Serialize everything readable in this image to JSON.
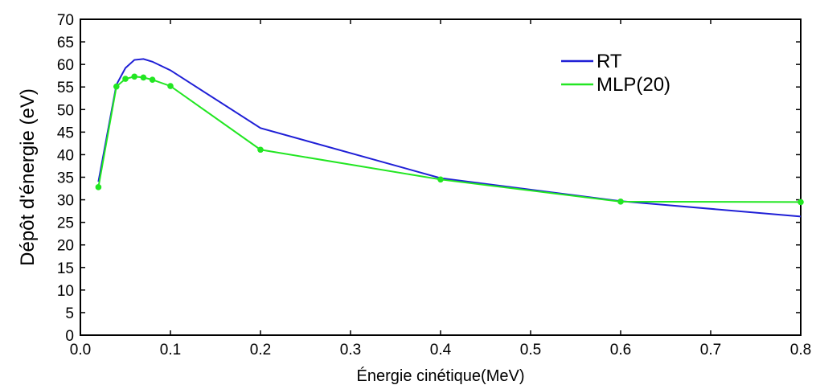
{
  "chart_data": {
    "type": "line",
    "xlabel": "Énergie cinétique(MeV)",
    "ylabel": "Dépôt d'énergie (eV)",
    "xlim": [
      0.0,
      0.8
    ],
    "ylim": [
      0,
      70
    ],
    "xticks": [
      0.0,
      0.1,
      0.2,
      0.3,
      0.4,
      0.5,
      0.6,
      0.7,
      0.8
    ],
    "xtick_labels": [
      "0.0",
      "0.1",
      "0.2",
      "0.3",
      "0.4",
      "0.5",
      "0.6",
      "0.7",
      "0.8"
    ],
    "yticks": [
      0,
      5,
      10,
      15,
      20,
      25,
      30,
      35,
      40,
      45,
      50,
      55,
      60,
      65,
      70
    ],
    "ytick_labels": [
      "0",
      "5",
      "10",
      "15",
      "20",
      "25",
      "30",
      "35",
      "40",
      "45",
      "50",
      "55",
      "60",
      "65",
      "70"
    ],
    "grid": false,
    "legend_position": "top-right",
    "series": [
      {
        "name": "RT",
        "color": "#1f1fd6",
        "markers": false,
        "x": [
          0.02,
          0.04,
          0.05,
          0.06,
          0.07,
          0.08,
          0.1,
          0.2,
          0.4,
          0.6,
          0.8
        ],
        "y": [
          34,
          55.5,
          59.2,
          61.0,
          61.2,
          60.6,
          58.7,
          45.9,
          34.8,
          29.7,
          26.3
        ]
      },
      {
        "name": "MLP(20)",
        "color": "#22e622",
        "markers": true,
        "x": [
          0.02,
          0.04,
          0.05,
          0.06,
          0.07,
          0.08,
          0.1,
          0.2,
          0.4,
          0.6,
          0.8
        ],
        "y": [
          32.8,
          55.1,
          56.8,
          57.3,
          57.1,
          56.6,
          55.2,
          41.1,
          34.5,
          29.6,
          29.5
        ]
      }
    ]
  }
}
